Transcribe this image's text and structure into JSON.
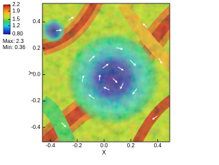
{
  "chart_data": {
    "type": "field",
    "xlabel": "X",
    "ylabel": "Y",
    "xlim": [
      -0.46,
      0.49
    ],
    "ylim": [
      -0.51,
      0.54
    ],
    "xticks": [
      -0.4,
      -0.2,
      {
        "value": 0,
        "label": "0.0"
      },
      0.2,
      0.4
    ],
    "yticks": [
      -0.4,
      -0.2,
      {
        "value": 0,
        "label": "0.0"
      },
      0.2,
      0.4
    ],
    "colorbar": {
      "clim": [
        0.8,
        2.2
      ],
      "ticks": [
        2.2,
        1.9,
        1.5,
        1.2,
        {
          "value": 0.8,
          "label": "0.80"
        }
      ],
      "colormap": [
        "#1a10b0",
        "#1060e0",
        "#20d0e0",
        "#30d060",
        "#c8e020",
        "#f0c020",
        "#f07018",
        "#c81010"
      ],
      "max_label": "Max: 2.3",
      "min_label": "Min: 0.36"
    }
  }
}
